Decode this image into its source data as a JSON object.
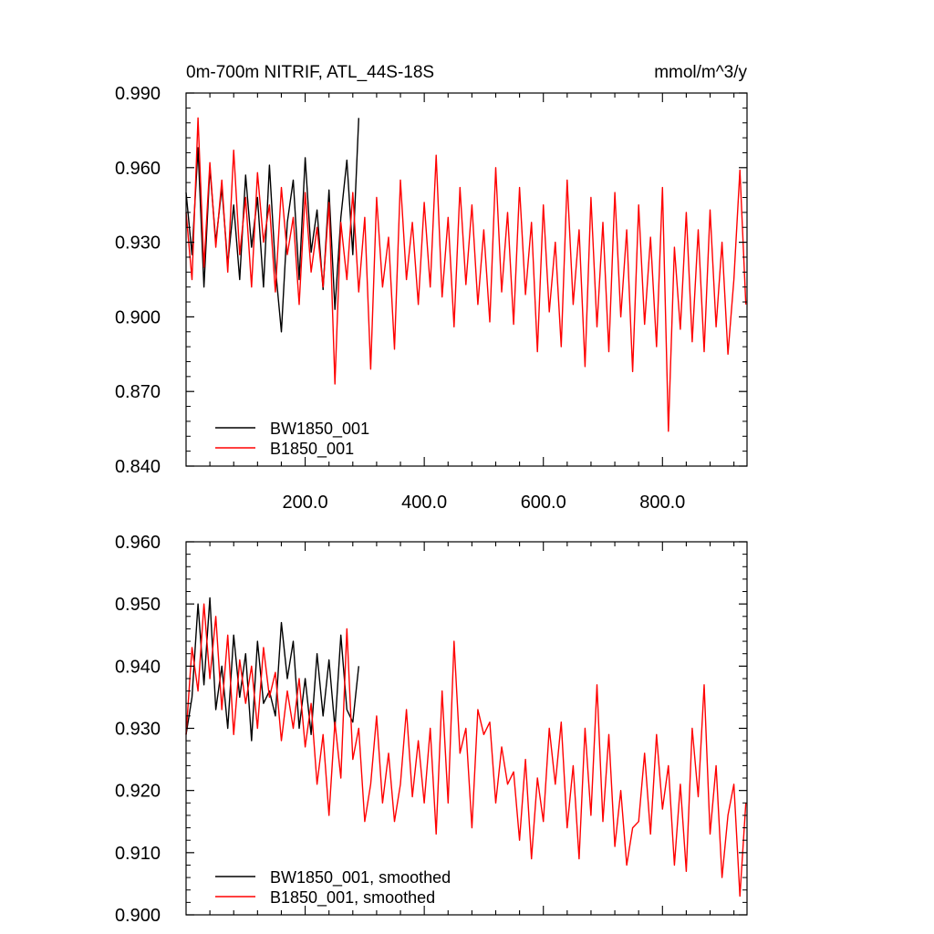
{
  "chart_data": [
    {
      "type": "line",
      "title_left": "0m-700m NITRIF, ATL_44S-18S",
      "title_right": "mmol/m^3/y",
      "xlim": [
        0,
        942
      ],
      "ylim": [
        0.84,
        0.99
      ],
      "x_ticks": [
        200,
        400,
        600,
        800
      ],
      "x_tick_labels": [
        "200.0",
        "400.0",
        "600.0",
        "800.0"
      ],
      "y_ticks": [
        0.84,
        0.87,
        0.9,
        0.93,
        0.96,
        0.99
      ],
      "y_tick_labels": [
        "0.840",
        "0.870",
        "0.900",
        "0.930",
        "0.960",
        "0.990"
      ],
      "legend": "bottom-left",
      "series": [
        {
          "name": "BW1850_001",
          "color": "#000000",
          "x": [
            0,
            10,
            20,
            30,
            40,
            50,
            60,
            70,
            80,
            90,
            100,
            110,
            120,
            130,
            140,
            150,
            160,
            170,
            180,
            190,
            200,
            210,
            220,
            230,
            240,
            250,
            260,
            270,
            280,
            290
          ],
          "values": [
            0.95,
            0.925,
            0.968,
            0.912,
            0.96,
            0.93,
            0.952,
            0.921,
            0.945,
            0.915,
            0.957,
            0.928,
            0.948,
            0.912,
            0.961,
            0.92,
            0.894,
            0.938,
            0.955,
            0.915,
            0.964,
            0.926,
            0.943,
            0.911,
            0.951,
            0.903,
            0.94,
            0.963,
            0.925,
            0.98
          ]
        },
        {
          "name": "B1850_001",
          "color": "#ff0000",
          "x": [
            0,
            10,
            20,
            30,
            40,
            50,
            60,
            70,
            80,
            90,
            100,
            110,
            120,
            130,
            140,
            150,
            160,
            170,
            180,
            190,
            200,
            210,
            220,
            230,
            240,
            250,
            260,
            270,
            280,
            290,
            300,
            310,
            320,
            330,
            340,
            350,
            360,
            370,
            380,
            390,
            400,
            410,
            420,
            430,
            440,
            450,
            460,
            470,
            480,
            490,
            500,
            510,
            520,
            530,
            540,
            550,
            560,
            570,
            580,
            590,
            600,
            610,
            620,
            630,
            640,
            650,
            660,
            670,
            680,
            690,
            700,
            710,
            720,
            730,
            740,
            750,
            760,
            770,
            780,
            790,
            800,
            810,
            820,
            830,
            840,
            850,
            860,
            870,
            880,
            890,
            900,
            910,
            920,
            930,
            940
          ],
          "values": [
            0.942,
            0.915,
            0.98,
            0.92,
            0.962,
            0.928,
            0.955,
            0.918,
            0.967,
            0.925,
            0.948,
            0.912,
            0.958,
            0.93,
            0.945,
            0.91,
            0.952,
            0.925,
            0.94,
            0.905,
            0.95,
            0.918,
            0.936,
            0.912,
            0.946,
            0.873,
            0.938,
            0.915,
            0.95,
            0.91,
            0.94,
            0.879,
            0.948,
            0.912,
            0.932,
            0.887,
            0.955,
            0.915,
            0.938,
            0.905,
            0.946,
            0.912,
            0.965,
            0.908,
            0.94,
            0.896,
            0.952,
            0.913,
            0.945,
            0.905,
            0.935,
            0.898,
            0.96,
            0.91,
            0.942,
            0.897,
            0.952,
            0.909,
            0.938,
            0.886,
            0.945,
            0.902,
            0.93,
            0.888,
            0.955,
            0.905,
            0.935,
            0.88,
            0.948,
            0.896,
            0.938,
            0.886,
            0.95,
            0.9,
            0.935,
            0.878,
            0.945,
            0.897,
            0.932,
            0.888,
            0.952,
            0.854,
            0.928,
            0.895,
            0.942,
            0.89,
            0.935,
            0.886,
            0.943,
            0.896,
            0.93,
            0.885,
            0.915,
            0.959,
            0.905
          ]
        }
      ]
    },
    {
      "type": "line",
      "xlim": [
        0,
        942
      ],
      "ylim": [
        0.9,
        0.96
      ],
      "y_ticks": [
        0.9,
        0.91,
        0.92,
        0.93,
        0.94,
        0.95,
        0.96
      ],
      "y_tick_labels": [
        "0.900",
        "0.910",
        "0.920",
        "0.930",
        "0.940",
        "0.950",
        "0.960"
      ],
      "legend": "bottom-left",
      "series": [
        {
          "name": "BW1850_001, smoothed",
          "color": "#000000",
          "x": [
            0,
            10,
            20,
            30,
            40,
            50,
            60,
            70,
            80,
            90,
            100,
            110,
            120,
            130,
            140,
            150,
            160,
            170,
            180,
            190,
            200,
            210,
            220,
            230,
            240,
            250,
            260,
            270,
            280,
            290
          ],
          "values": [
            0.929,
            0.935,
            0.95,
            0.937,
            0.951,
            0.933,
            0.94,
            0.93,
            0.945,
            0.935,
            0.942,
            0.928,
            0.944,
            0.934,
            0.936,
            0.932,
            0.947,
            0.938,
            0.944,
            0.93,
            0.938,
            0.929,
            0.942,
            0.932,
            0.941,
            0.93,
            0.945,
            0.933,
            0.931,
            0.94
          ]
        },
        {
          "name": "B1850_001, smoothed",
          "color": "#ff0000",
          "x": [
            0,
            10,
            20,
            30,
            40,
            50,
            60,
            70,
            80,
            90,
            100,
            110,
            120,
            130,
            140,
            150,
            160,
            170,
            180,
            190,
            200,
            210,
            220,
            230,
            240,
            250,
            260,
            270,
            280,
            290,
            300,
            310,
            320,
            330,
            340,
            350,
            360,
            370,
            380,
            390,
            400,
            410,
            420,
            430,
            440,
            450,
            460,
            470,
            480,
            490,
            500,
            510,
            520,
            530,
            540,
            550,
            560,
            570,
            580,
            590,
            600,
            610,
            620,
            630,
            640,
            650,
            660,
            670,
            680,
            690,
            700,
            710,
            720,
            730,
            740,
            750,
            760,
            770,
            780,
            790,
            800,
            810,
            820,
            830,
            840,
            850,
            860,
            870,
            880,
            890,
            900,
            910,
            920,
            930,
            940
          ],
          "values": [
            0.929,
            0.943,
            0.936,
            0.95,
            0.938,
            0.948,
            0.933,
            0.945,
            0.929,
            0.941,
            0.934,
            0.94,
            0.93,
            0.943,
            0.935,
            0.939,
            0.928,
            0.936,
            0.93,
            0.938,
            0.927,
            0.934,
            0.921,
            0.929,
            0.916,
            0.931,
            0.922,
            0.946,
            0.925,
            0.93,
            0.915,
            0.921,
            0.932,
            0.918,
            0.926,
            0.915,
            0.921,
            0.933,
            0.919,
            0.928,
            0.918,
            0.93,
            0.913,
            0.936,
            0.918,
            0.944,
            0.926,
            0.93,
            0.914,
            0.933,
            0.929,
            0.931,
            0.918,
            0.927,
            0.921,
            0.923,
            0.912,
            0.925,
            0.909,
            0.922,
            0.915,
            0.93,
            0.921,
            0.931,
            0.914,
            0.924,
            0.909,
            0.93,
            0.916,
            0.937,
            0.915,
            0.929,
            0.911,
            0.92,
            0.908,
            0.914,
            0.915,
            0.926,
            0.913,
            0.929,
            0.917,
            0.924,
            0.908,
            0.921,
            0.907,
            0.93,
            0.919,
            0.937,
            0.913,
            0.924,
            0.906,
            0.916,
            0.921,
            0.903,
            0.918
          ]
        }
      ]
    }
  ]
}
